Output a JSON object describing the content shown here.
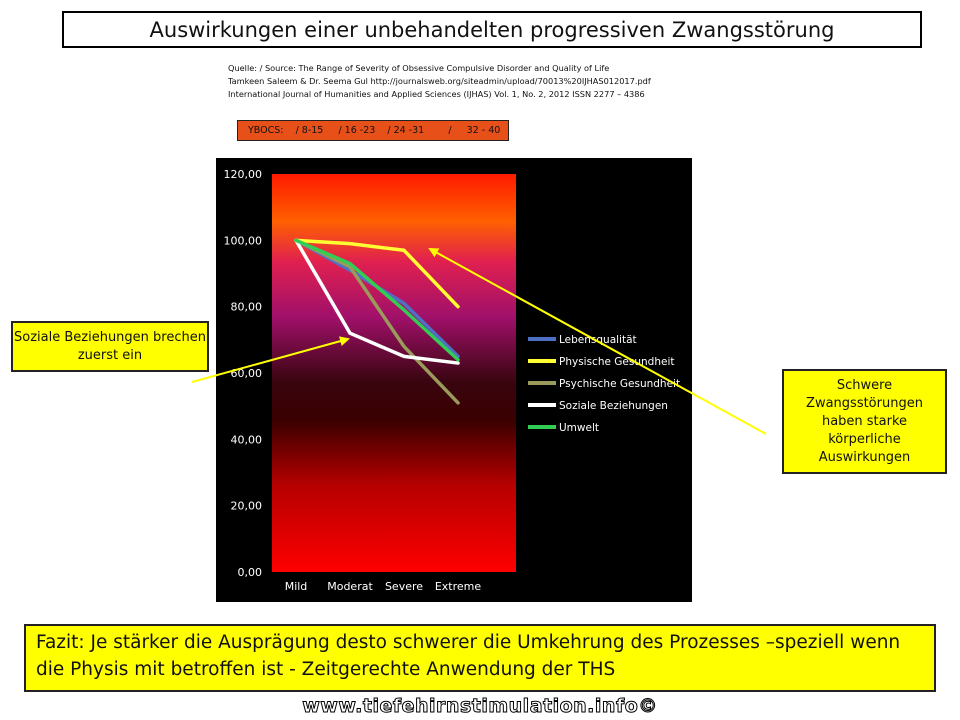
{
  "title": "Auswirkungen einer  unbehandelten progressiven Zwangsstörung",
  "source": {
    "line1": "Quelle: / Source: The Range of Severity of Obsessive Compulsive Disorder and Quality of Life",
    "line2": "Tamkeen Saleem & Dr. Seema Gul http://journalsweb.org/siteadmin/upload/70013%20IJHAS012017.pdf",
    "line3": "International Journal of Humanities and Applied Sciences (IJHAS) Vol. 1, No. 2, 2012 ISSN 2277 – 4386"
  },
  "ybocs": "YBOCS:    / 8-15     / 16 -23    / 24 -31        /     32 - 40",
  "callouts": {
    "left": "Soziale Beziehungen brechen zuerst ein",
    "right": "Schwere Zwangsstörungen haben starke körperliche Auswirkungen"
  },
  "conclusion": "Fazit: Je stärker die Ausprägung desto schwerer die Umkehrung des Prozesses –speziell wenn die Physis  mit betroffen ist - Zeitgerechte Anwendung der THS",
  "footer": "www.tiefehirnstimulation.info©",
  "colors": {
    "callout_bg": "#ffff00",
    "ybocs_bg": "#e8501a",
    "arrow": "#ffff00"
  },
  "chart_data": {
    "type": "line",
    "categories": [
      "Mild",
      "Moderat",
      "Severe",
      "Extreme"
    ],
    "ylim": [
      0,
      120
    ],
    "yticks": [
      "0,00",
      "20,00",
      "40,00",
      "60,00",
      "80,00",
      "100,00",
      "120,00"
    ],
    "legend_position": "right",
    "series": [
      {
        "name": "Lebensqualität",
        "color": "#4f6fc4",
        "values": [
          100,
          91,
          81,
          65
        ]
      },
      {
        "name": "Physische Gesundheit",
        "color": "#ffff33",
        "values": [
          100,
          99,
          97,
          80
        ]
      },
      {
        "name": "Psychische Gesundheit",
        "color": "#9a9a5a",
        "values": [
          100,
          92,
          68,
          51
        ]
      },
      {
        "name": "Soziale Beziehungen",
        "color": "#ffffff",
        "values": [
          100,
          72,
          65,
          63
        ]
      },
      {
        "name": "Umwelt",
        "color": "#33cc55",
        "values": [
          100,
          93,
          79,
          64
        ]
      }
    ]
  }
}
